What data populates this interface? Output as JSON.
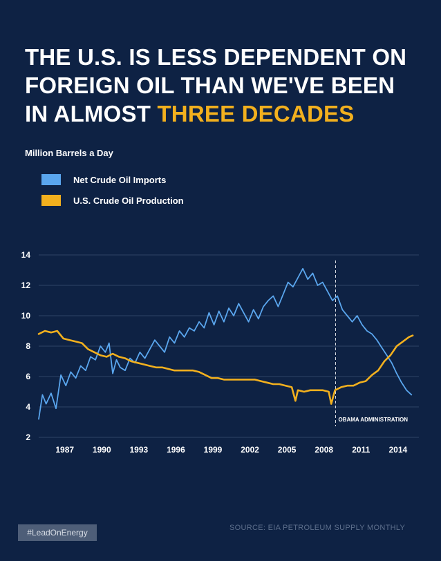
{
  "title": {
    "line1": "THE U.S. IS LESS DEPENDENT ON",
    "line2": "FOREIGN OIL THAN WE'VE BEEN",
    "line3_prefix": "IN ALMOST ",
    "line3_highlight": "THREE DECADES"
  },
  "units_label": "Million Barrels a Day",
  "footer": {
    "hashtag": "#LeadOnEnergy",
    "source": "SOURCE: EIA PETROLEUM SUPPLY MONTHLY"
  },
  "colors": {
    "background": "#0e2244",
    "imports": "#5aa6ee",
    "production": "#f2b01e",
    "grid": "#2e4466",
    "highlight": "#f2b01e"
  },
  "chart_data": {
    "type": "line",
    "title": "THE U.S. IS LESS DEPENDENT ON FOREIGN OIL THAN WE'VE BEEN IN ALMOST THREE DECADES",
    "ylabel": "Million Barrels a Day",
    "xlabel": "",
    "ylim": [
      2,
      14
    ],
    "xlim": [
      1985.0,
      2015.8
    ],
    "yticks": [
      2,
      4,
      6,
      8,
      10,
      12,
      14
    ],
    "xticks": [
      1987,
      1990,
      1993,
      1996,
      1999,
      2002,
      2005,
      2008,
      2011,
      2014
    ],
    "grid": true,
    "annotation": {
      "x": 2009.05,
      "label": "OBAMA ADMINISTRATION"
    },
    "series": [
      {
        "name": "Net Crude Oil Imports",
        "color": "#5aa6ee",
        "x": [
          1985.0,
          1985.3,
          1985.6,
          1986.0,
          1986.4,
          1986.8,
          1987.2,
          1987.6,
          1988.0,
          1988.4,
          1988.8,
          1989.2,
          1989.6,
          1990.0,
          1990.4,
          1990.7,
          1991.0,
          1991.3,
          1991.6,
          1992.0,
          1992.4,
          1992.8,
          1993.2,
          1993.6,
          1994.0,
          1994.4,
          1994.8,
          1995.2,
          1995.6,
          1996.0,
          1996.4,
          1996.8,
          1997.2,
          1997.6,
          1998.0,
          1998.4,
          1998.8,
          1999.2,
          1999.6,
          2000.0,
          2000.4,
          2000.8,
          2001.2,
          2001.6,
          2002.0,
          2002.4,
          2002.8,
          2003.2,
          2003.6,
          2004.0,
          2004.4,
          2004.8,
          2005.2,
          2005.6,
          2006.0,
          2006.4,
          2006.8,
          2007.2,
          2007.6,
          2008.0,
          2008.4,
          2008.8,
          2009.2,
          2009.6,
          2010.0,
          2010.4,
          2010.8,
          2011.2,
          2011.6,
          2012.0,
          2012.4,
          2012.8,
          2013.2,
          2013.6,
          2014.0,
          2014.4,
          2014.8,
          2015.2
        ],
        "values": [
          3.2,
          4.8,
          4.2,
          4.9,
          3.9,
          6.1,
          5.4,
          6.3,
          5.9,
          6.7,
          6.4,
          7.3,
          7.1,
          8.0,
          7.6,
          8.2,
          6.2,
          7.1,
          6.6,
          6.4,
          7.2,
          6.9,
          7.6,
          7.2,
          7.8,
          8.4,
          8.0,
          7.6,
          8.6,
          8.2,
          9.0,
          8.6,
          9.2,
          9.0,
          9.6,
          9.2,
          10.2,
          9.4,
          10.3,
          9.6,
          10.5,
          10.0,
          10.8,
          10.2,
          9.6,
          10.4,
          9.8,
          10.6,
          11.0,
          11.3,
          10.6,
          11.4,
          12.2,
          11.9,
          12.5,
          13.1,
          12.4,
          12.8,
          12.0,
          12.2,
          11.6,
          11.0,
          11.3,
          10.4,
          10.0,
          9.6,
          10.0,
          9.4,
          9.0,
          8.8,
          8.4,
          7.9,
          7.4,
          6.9,
          6.2,
          5.6,
          5.1,
          4.8
        ]
      },
      {
        "name": "U.S. Crude Oil Production",
        "color": "#f2b01e",
        "x": [
          1985.0,
          1985.5,
          1986.0,
          1986.5,
          1987.0,
          1987.5,
          1988.0,
          1988.5,
          1989.0,
          1989.5,
          1990.0,
          1990.5,
          1991.0,
          1991.5,
          1992.0,
          1992.5,
          1993.0,
          1993.5,
          1994.0,
          1994.5,
          1995.0,
          1995.5,
          1996.0,
          1996.5,
          1997.0,
          1997.5,
          1998.0,
          1998.5,
          1999.0,
          1999.5,
          2000.0,
          2000.5,
          2001.0,
          2001.5,
          2002.0,
          2002.5,
          2003.0,
          2003.5,
          2004.0,
          2004.5,
          2005.0,
          2005.5,
          2005.8,
          2006.0,
          2006.5,
          2007.0,
          2007.5,
          2008.0,
          2008.5,
          2008.7,
          2009.0,
          2009.5,
          2010.0,
          2010.5,
          2011.0,
          2011.5,
          2012.0,
          2012.5,
          2013.0,
          2013.5,
          2014.0,
          2014.5,
          2015.0,
          2015.3
        ],
        "values": [
          8.8,
          9.0,
          8.9,
          9.0,
          8.5,
          8.4,
          8.3,
          8.2,
          7.8,
          7.6,
          7.4,
          7.3,
          7.5,
          7.3,
          7.2,
          7.0,
          6.9,
          6.8,
          6.7,
          6.6,
          6.6,
          6.5,
          6.4,
          6.4,
          6.4,
          6.4,
          6.3,
          6.1,
          5.9,
          5.9,
          5.8,
          5.8,
          5.8,
          5.8,
          5.8,
          5.8,
          5.7,
          5.6,
          5.5,
          5.5,
          5.4,
          5.3,
          4.4,
          5.1,
          5.0,
          5.1,
          5.1,
          5.1,
          5.0,
          4.2,
          5.1,
          5.3,
          5.4,
          5.4,
          5.6,
          5.7,
          6.1,
          6.4,
          7.0,
          7.4,
          8.0,
          8.3,
          8.6,
          8.7
        ]
      }
    ]
  }
}
